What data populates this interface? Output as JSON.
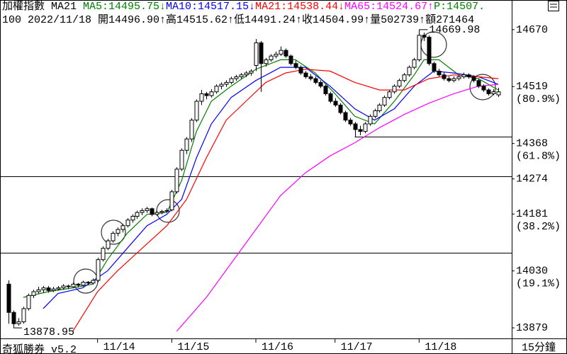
{
  "header": {
    "line1": [
      {
        "text": "加權指數 MA21",
        "color": "#000000"
      },
      {
        "text": "MA5:14495.75↓",
        "color": "#008000"
      },
      {
        "text": "MA10:14517.15↓",
        "color": "#0000ff"
      },
      {
        "text": "MA21:14538.44↓",
        "color": "#ff0000"
      },
      {
        "text": "MA65:14524.67↑",
        "color": "#ff00ff"
      },
      {
        "text": "P:14507.",
        "color": "#008000"
      }
    ],
    "line2": "100 2022/11/18 開14496.90↑高14515.62↑低14491.24↑收14504.99↑量502739↑額271464"
  },
  "footer": {
    "brand": "奇狐勝券 v5.2",
    "period": "15分鐘"
  },
  "chart_data": {
    "type": "candlestick",
    "xlim": [
      -1.72,
      101.72
    ],
    "ylim": [
      13851,
      14696
    ],
    "xticks": [
      {
        "value": 18,
        "label": "11/14"
      },
      {
        "value": 33,
        "label": "11/15"
      },
      {
        "value": 50,
        "label": "11/16"
      },
      {
        "value": 66,
        "label": "11/17"
      },
      {
        "value": 83,
        "label": "11/18"
      }
    ],
    "yticks": [
      14670,
      14519,
      14368,
      14274,
      14181,
      14030,
      13879
    ],
    "ytick_notes": [
      {
        "value": 14519,
        "label": "(80.9%)"
      },
      {
        "value": 14368,
        "label": "(61.8%)"
      },
      {
        "value": 14181,
        "label": "(38.2%)"
      },
      {
        "value": 14030,
        "label": "(19.1%)"
      }
    ],
    "levels": [
      {
        "value": 14386,
        "start": 70
      },
      {
        "value": 14281
      },
      {
        "value": 14078
      }
    ],
    "up_color": "#ffffff",
    "down_color": "#000000",
    "candles": [
      [
        13995,
        14005,
        13890,
        13920
      ],
      [
        13920,
        13925,
        13878.95,
        13890
      ],
      [
        13890,
        13905,
        13885,
        13895
      ],
      [
        13895,
        13935,
        13890,
        13930
      ],
      [
        13930,
        13970,
        13925,
        13965
      ],
      [
        13965,
        13980,
        13958,
        13975
      ],
      [
        13975,
        13988,
        13970,
        13980
      ],
      [
        13980,
        13990,
        13972,
        13985
      ],
      [
        13985,
        13990,
        13972,
        13978
      ],
      [
        13978,
        13988,
        13974,
        13982
      ],
      [
        13982,
        13990,
        13978,
        13985
      ],
      [
        13985,
        13995,
        13980,
        13990
      ],
      [
        13990,
        13994,
        13982,
        13988
      ],
      [
        13988,
        13999,
        13984,
        13995
      ],
      [
        13995,
        13998,
        13986,
        13992
      ],
      [
        13992,
        14004,
        13988,
        14000
      ],
      [
        14000,
        14003,
        13992,
        13998
      ],
      [
        13998,
        14010,
        13994,
        14005
      ],
      [
        14005,
        14065,
        14000,
        14060
      ],
      [
        14060,
        14095,
        14055,
        14090
      ],
      [
        14090,
        14115,
        14085,
        14110
      ],
      [
        14110,
        14135,
        14105,
        14130
      ],
      [
        14130,
        14145,
        14122,
        14140
      ],
      [
        14140,
        14155,
        14132,
        14150
      ],
      [
        14150,
        14170,
        14145,
        14165
      ],
      [
        14165,
        14180,
        14158,
        14175
      ],
      [
        14175,
        14190,
        14168,
        14185
      ],
      [
        14185,
        14196,
        14178,
        14190
      ],
      [
        14190,
        14200,
        14184,
        14195
      ],
      [
        14195,
        14198,
        14175,
        14180
      ],
      [
        14180,
        14190,
        14176,
        14185
      ],
      [
        14185,
        14192,
        14180,
        14188
      ],
      [
        14188,
        14196,
        14184,
        14190
      ],
      [
        14192,
        14245,
        14188,
        14240
      ],
      [
        14240,
        14305,
        14235,
        14300
      ],
      [
        14300,
        14355,
        14295,
        14350
      ],
      [
        14350,
        14385,
        14340,
        14380
      ],
      [
        14380,
        14435,
        14372,
        14430
      ],
      [
        14430,
        14485,
        14425,
        14480
      ],
      [
        14480,
        14510,
        14470,
        14500
      ],
      [
        14500,
        14505,
        14485,
        14495
      ],
      [
        14495,
        14512,
        14490,
        14505
      ],
      [
        14505,
        14525,
        14500,
        14520
      ],
      [
        14520,
        14530,
        14512,
        14525
      ],
      [
        14525,
        14536,
        14518,
        14530
      ],
      [
        14530,
        14545,
        14525,
        14540
      ],
      [
        14540,
        14550,
        14534,
        14545
      ],
      [
        14545,
        14555,
        14540,
        14550
      ],
      [
        14550,
        14560,
        14544,
        14555
      ],
      [
        14555,
        14565,
        14548,
        14560
      ],
      [
        14575,
        14645,
        14560,
        14635
      ],
      [
        14635,
        14640,
        14505,
        14580
      ],
      [
        14580,
        14595,
        14572,
        14590
      ],
      [
        14590,
        14605,
        14585,
        14600
      ],
      [
        14600,
        14612,
        14594,
        14605
      ],
      [
        14605,
        14625,
        14600,
        14615
      ],
      [
        14615,
        14620,
        14595,
        14600
      ],
      [
        14600,
        14604,
        14575,
        14580
      ],
      [
        14580,
        14588,
        14565,
        14570
      ],
      [
        14570,
        14575,
        14550,
        14555
      ],
      [
        14555,
        14560,
        14540,
        14545
      ],
      [
        14545,
        14552,
        14535,
        14540
      ],
      [
        14540,
        14546,
        14525,
        14530
      ],
      [
        14530,
        14536,
        14515,
        14520
      ],
      [
        14520,
        14524,
        14495,
        14500
      ],
      [
        14500,
        14505,
        14475,
        14480
      ],
      [
        14480,
        14488,
        14465,
        14470
      ],
      [
        14470,
        14475,
        14445,
        14450
      ],
      [
        14450,
        14455,
        14425,
        14430
      ],
      [
        14430,
        14436,
        14415,
        14420
      ],
      [
        14420,
        14425,
        14386,
        14405
      ],
      [
        14405,
        14415,
        14390,
        14400
      ],
      [
        14400,
        14425,
        14395,
        14420
      ],
      [
        14420,
        14445,
        14415,
        14440
      ],
      [
        14440,
        14460,
        14435,
        14455
      ],
      [
        14455,
        14475,
        14450,
        14470
      ],
      [
        14470,
        14495,
        14465,
        14490
      ],
      [
        14490,
        14510,
        14485,
        14505
      ],
      [
        14505,
        14525,
        14500,
        14520
      ],
      [
        14520,
        14540,
        14515,
        14535
      ],
      [
        14535,
        14555,
        14530,
        14550
      ],
      [
        14550,
        14575,
        14545,
        14570
      ],
      [
        14570,
        14595,
        14565,
        14590
      ],
      [
        14590,
        14669.98,
        14585,
        14655
      ],
      [
        14655,
        14662,
        14640,
        14650
      ],
      [
        14650,
        14655,
        14575,
        14580
      ],
      [
        14580,
        14585,
        14555,
        14560
      ],
      [
        14560,
        14566,
        14545,
        14550
      ],
      [
        14550,
        14556,
        14535,
        14540
      ],
      [
        14540,
        14546,
        14530,
        14535
      ],
      [
        14535,
        14546,
        14530,
        14540
      ],
      [
        14540,
        14550,
        14535,
        14545
      ],
      [
        14545,
        14556,
        14540,
        14550
      ],
      [
        14550,
        14554,
        14540,
        14545
      ],
      [
        14545,
        14549,
        14530,
        14535
      ],
      [
        14535,
        14540,
        14515,
        14520
      ],
      [
        14520,
        14525,
        14505,
        14510
      ],
      [
        14510,
        14514,
        14495,
        14500
      ],
      [
        14500,
        14512,
        14496,
        14505
      ],
      [
        14496.9,
        14515.62,
        14491.24,
        14504.99
      ]
    ],
    "series": [
      {
        "color": "#008000",
        "x": [
          3,
          8,
          13,
          17,
          20,
          24,
          28,
          32,
          35,
          38,
          41,
          45,
          50,
          55,
          58,
          62,
          66,
          70,
          74,
          78,
          82,
          84,
          87,
          91,
          95,
          99
        ],
        "values": [
          13960,
          13975,
          13985,
          13995,
          14060,
          14130,
          14180,
          14185,
          14270,
          14400,
          14480,
          14520,
          14565,
          14590,
          14590,
          14555,
          14500,
          14440,
          14420,
          14480,
          14550,
          14590,
          14590,
          14550,
          14540,
          14510
        ]
      },
      {
        "color": "#0000ff",
        "x": [
          7,
          10,
          15,
          20,
          24,
          28,
          32,
          35,
          38,
          41,
          45,
          50,
          55,
          60,
          65,
          70,
          74,
          78,
          82,
          86,
          90,
          95,
          99
        ],
        "values": [
          13930,
          13970,
          13985,
          14030,
          14090,
          14150,
          14180,
          14220,
          14330,
          14420,
          14490,
          14535,
          14570,
          14570,
          14520,
          14460,
          14430,
          14460,
          14520,
          14560,
          14555,
          14545,
          14525
        ]
      },
      {
        "color": "#ff0000",
        "x": [
          13,
          18,
          22,
          27,
          32,
          36,
          40,
          44,
          48,
          52,
          56,
          60,
          65,
          70,
          75,
          80,
          85,
          90,
          95,
          99
        ],
        "values": [
          13870,
          13975,
          14030,
          14090,
          14150,
          14220,
          14330,
          14430,
          14480,
          14530,
          14555,
          14565,
          14560,
          14530,
          14510,
          14510,
          14540,
          14550,
          14545,
          14540
        ]
      },
      {
        "color": "#ff00ff",
        "x": [
          34,
          40,
          45,
          50,
          55,
          60,
          65,
          70,
          75,
          80,
          85,
          90,
          95,
          99
        ],
        "values": [
          13870,
          13960,
          14050,
          14140,
          14230,
          14290,
          14335,
          14370,
          14410,
          14445,
          14475,
          14500,
          14520,
          14525
        ]
      }
    ],
    "annotations": [
      {
        "text": "14669.98",
        "x": 83,
        "y": 14669.98
      },
      {
        "text": "13878.95",
        "x": 1,
        "y": 13878.95
      }
    ]
  }
}
